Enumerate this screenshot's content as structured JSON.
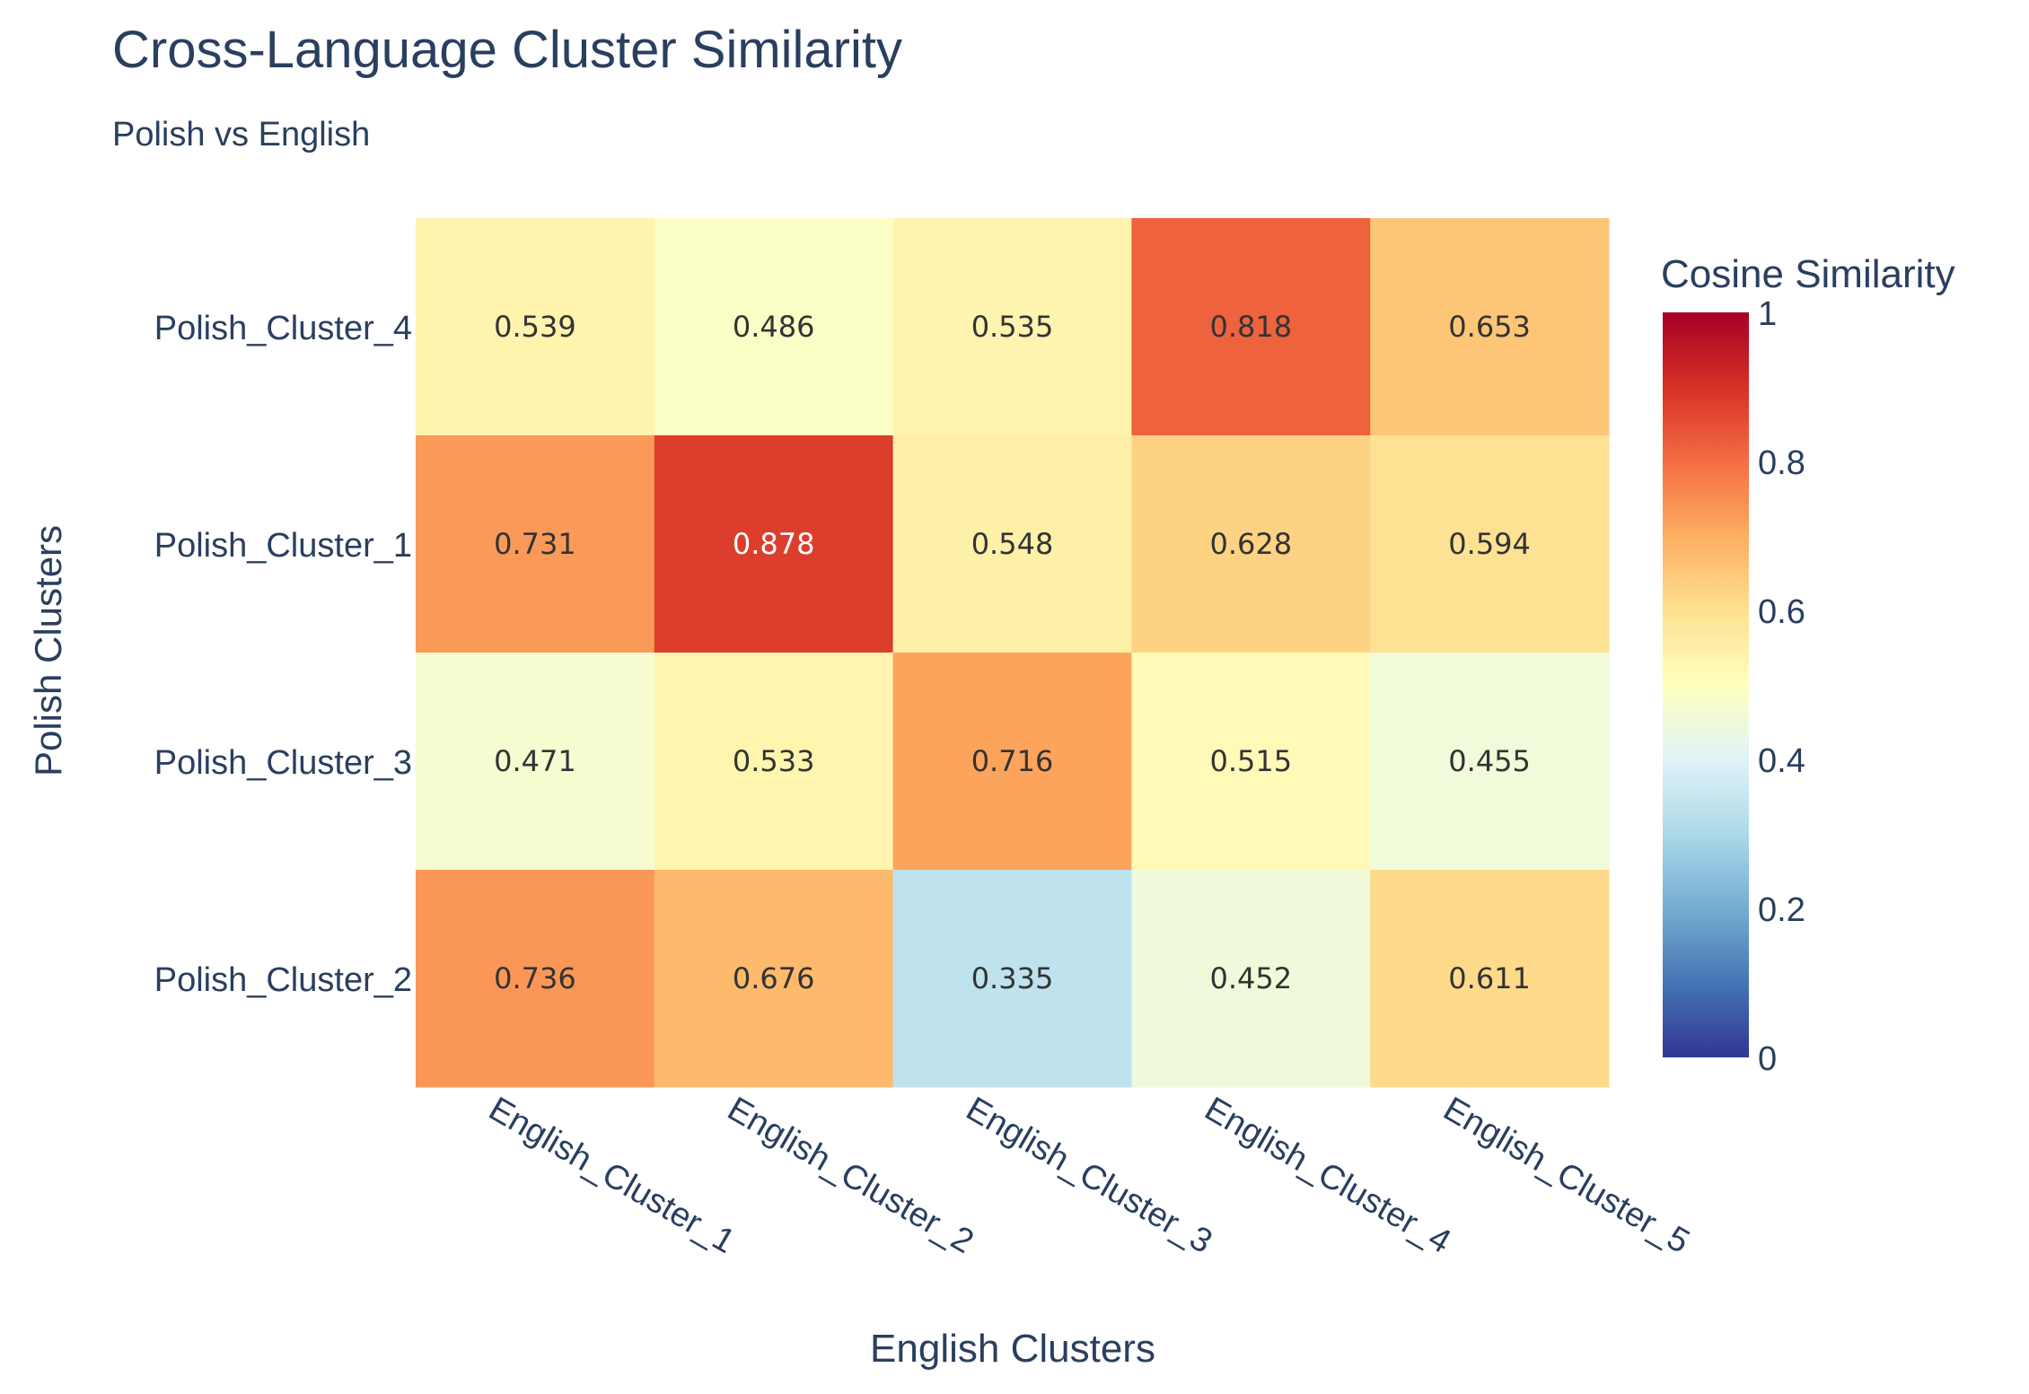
{
  "chart_data": {
    "type": "heatmap",
    "title": "Cross-Language Cluster Similarity",
    "subtitle": "Polish vs English",
    "xlabel": "English Clusters",
    "ylabel": "Polish Clusters",
    "x_categories": [
      "English_Cluster_1",
      "English_Cluster_2",
      "English_Cluster_3",
      "English_Cluster_4",
      "English_Cluster_5"
    ],
    "y_categories": [
      "Polish_Cluster_4",
      "Polish_Cluster_1",
      "Polish_Cluster_3",
      "Polish_Cluster_2"
    ],
    "values": [
      [
        0.539,
        0.486,
        0.535,
        0.818,
        0.653
      ],
      [
        0.731,
        0.878,
        0.548,
        0.628,
        0.594
      ],
      [
        0.471,
        0.533,
        0.716,
        0.515,
        0.455
      ],
      [
        0.736,
        0.676,
        0.335,
        0.452,
        0.611
      ]
    ],
    "cell_labels": [
      [
        "0.539",
        "0.486",
        "0.535",
        "0.818",
        "0.653"
      ],
      [
        "0.731",
        "0.878",
        "0.548",
        "0.628",
        "0.594"
      ],
      [
        "0.471",
        "0.533",
        "0.716",
        "0.515",
        "0.455"
      ],
      [
        "0.736",
        "0.676",
        "0.335",
        "0.452",
        "0.611"
      ]
    ],
    "colorscale": "RdYlBu_r",
    "colorscale_colors": [
      "#313695",
      "#4575b4",
      "#74add1",
      "#abd9e9",
      "#e0f3f8",
      "#ffffbf",
      "#fee090",
      "#fdae61",
      "#f46d43",
      "#d73027",
      "#a50026"
    ],
    "zlim": [
      0,
      1
    ],
    "colorbar": {
      "title": "Cosine Similarity",
      "ticks": [
        0,
        0.2,
        0.4,
        0.6,
        0.8,
        1
      ],
      "tick_labels": [
        "0",
        "0.2",
        "0.4",
        "0.6",
        "0.8",
        "1"
      ]
    }
  }
}
